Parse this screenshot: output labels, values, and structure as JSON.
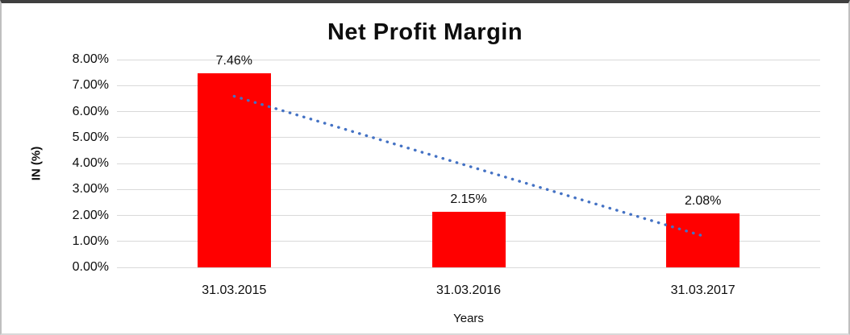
{
  "chart_data": {
    "type": "bar",
    "title": "Net Profit Margin",
    "categories": [
      "31.03.2015",
      "31.03.2016",
      "31.03.2017"
    ],
    "values": [
      7.46,
      2.15,
      2.08
    ],
    "value_labels": [
      "7.46%",
      "2.15%",
      "2.08%"
    ],
    "xlabel": "Years",
    "ylabel": "IN (%)",
    "ylim": [
      0,
      8
    ],
    "ytick_step": 1,
    "ytick_labels": [
      "0.00%",
      "1.00%",
      "2.00%",
      "3.00%",
      "4.00%",
      "5.00%",
      "6.00%",
      "7.00%",
      "8.00%"
    ],
    "grid": true,
    "legend": "none",
    "bar_color": "#ff0000",
    "trendline": {
      "type": "linear",
      "style": "dotted",
      "color": "#4472c4",
      "start_value": 6.59,
      "end_value": 1.21
    }
  }
}
